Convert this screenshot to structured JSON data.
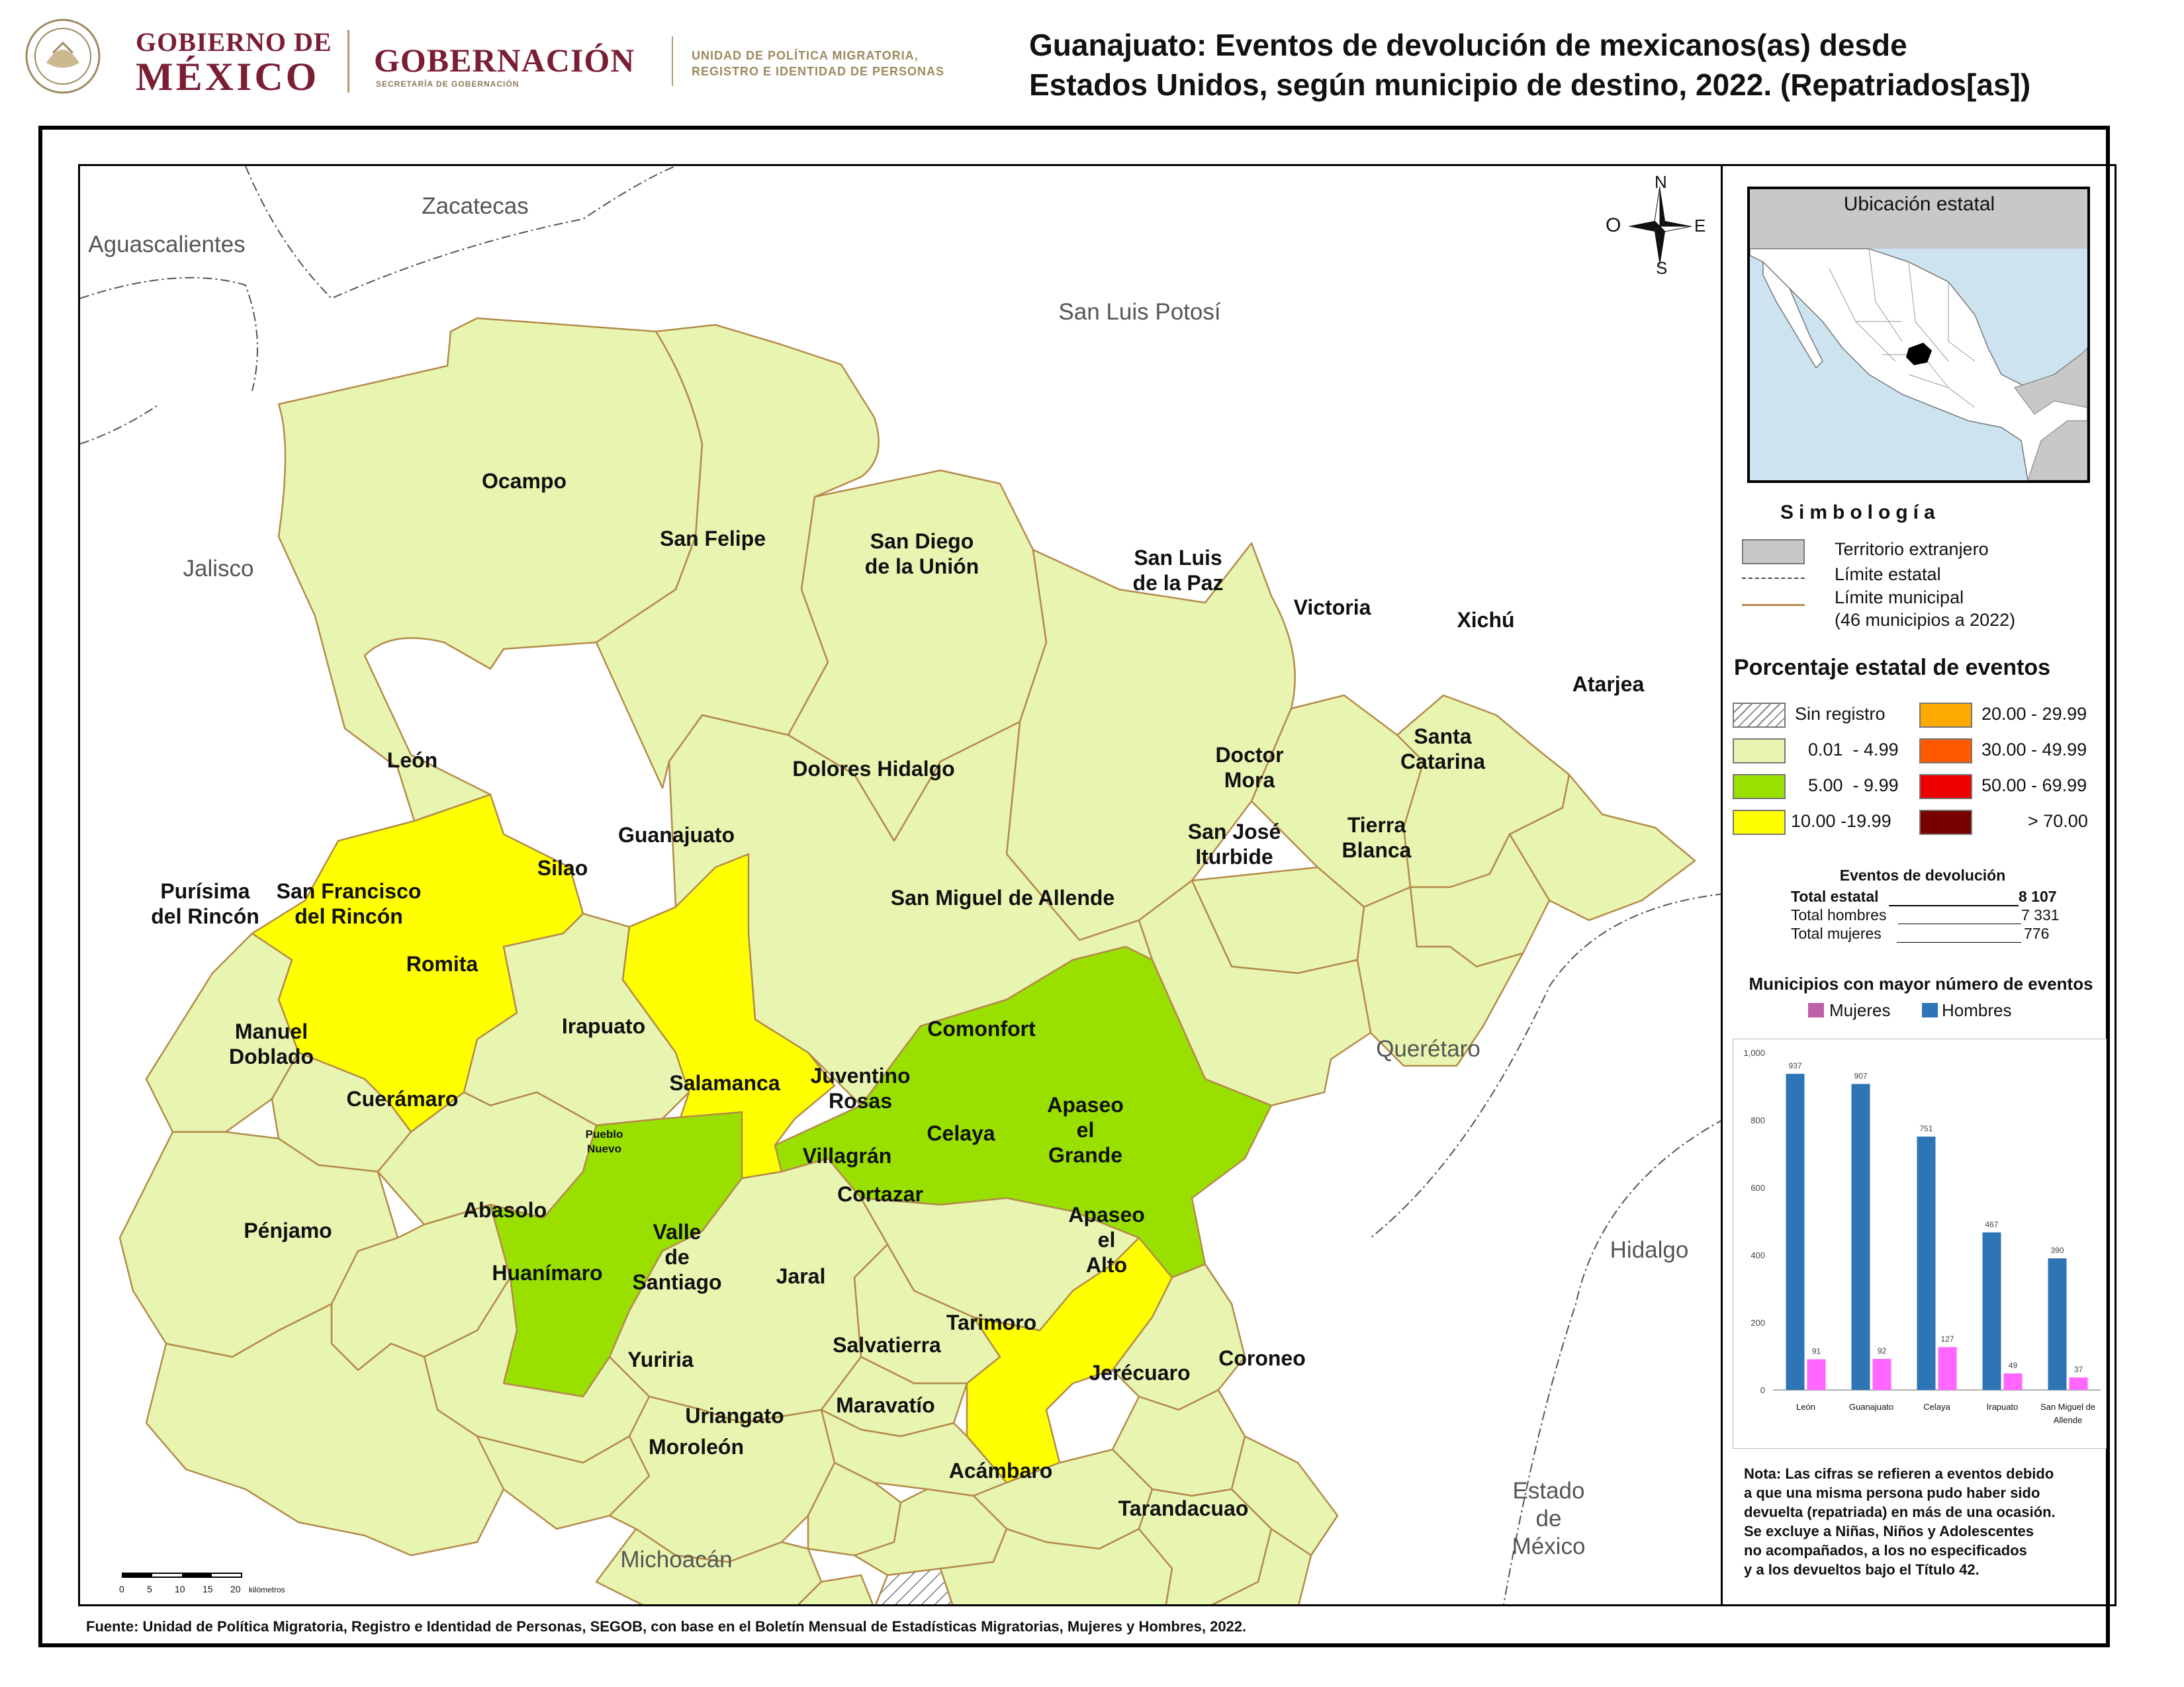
{
  "header": {
    "gobierno_line1": "GOBIERNO DE",
    "gobierno_line2": "MÉXICO",
    "gobernacion": "GOBERNACIÓN",
    "gobernacion_sub": "SECRETARÍA DE GOBERNACIÓN",
    "unidad_line1": "UNIDAD DE POLÍTICA MIGRATORIA,",
    "unidad_line2": "REGISTRO E IDENTIDAD DE PERSONAS",
    "title_line1": "Guanajuato: Eventos de devolución de mexicanos(as) desde",
    "title_line2": "Estados Unidos, según municipio de destino, 2022. (Repatriados[as])"
  },
  "map": {
    "states": {
      "zacatecas": "Zacatecas",
      "aguascalientes": "Aguascalientes",
      "san_luis_potosi": "San Luis Potosí",
      "jalisco": "Jalisco",
      "queretaro": "Querétaro",
      "hidalgo": "Hidalgo",
      "michoacan": "Michoacán",
      "estado_mexico_1": "Estado",
      "estado_mexico_2": "de",
      "estado_mexico_3": "México"
    },
    "compass": {
      "n": "N",
      "s": "S",
      "e": "E",
      "o": "O"
    },
    "scale": {
      "ticks": [
        "0",
        "5",
        "10",
        "15",
        "20"
      ],
      "unit": "kilómetros"
    },
    "municipalities": [
      {
        "name": "Ocampo",
        "class": "0.01 - 4.99"
      },
      {
        "name": "San Felipe",
        "class": "0.01 - 4.99"
      },
      {
        "name": "San Diego de la Unión",
        "class": "0.01 - 4.99"
      },
      {
        "name": "San Luis de la Paz",
        "class": "0.01 - 4.99"
      },
      {
        "name": "Victoria",
        "class": "0.01 - 4.99"
      },
      {
        "name": "Xichú",
        "class": "0.01 - 4.99"
      },
      {
        "name": "Atarjea",
        "class": "0.01 - 4.99"
      },
      {
        "name": "León",
        "class": "10.00 -19.99"
      },
      {
        "name": "Guanajuato",
        "class": "10.00 -19.99"
      },
      {
        "name": "Dolores Hidalgo",
        "class": "0.01 - 4.99"
      },
      {
        "name": "Doctor Mora",
        "class": "0.01 - 4.99"
      },
      {
        "name": "Santa Catarina",
        "class": "0.01 - 4.99"
      },
      {
        "name": "San José Iturbide",
        "class": "0.01 - 4.99"
      },
      {
        "name": "Tierra Blanca",
        "class": "0.01 - 4.99"
      },
      {
        "name": "Silao",
        "class": "0.01 - 4.99"
      },
      {
        "name": "Purísima del Rincón",
        "class": "0.01 - 4.99"
      },
      {
        "name": "San Francisco del Rincón",
        "class": "0.01 - 4.99"
      },
      {
        "name": "San Miguel de Allende",
        "class": "5.00 - 9.99"
      },
      {
        "name": "Romita",
        "class": "0.01 - 4.99"
      },
      {
        "name": "Irapuato",
        "class": "5.00 - 9.99"
      },
      {
        "name": "Comonfort",
        "class": "0.01 - 4.99"
      },
      {
        "name": "Manuel Doblado",
        "class": "0.01 - 4.99"
      },
      {
        "name": "Salamanca",
        "class": "0.01 - 4.99"
      },
      {
        "name": "Juventino Rosas",
        "class": "0.01 - 4.99"
      },
      {
        "name": "Cuerámaro",
        "class": "0.01 - 4.99"
      },
      {
        "name": "Celaya",
        "class": "10.00 -19.99"
      },
      {
        "name": "Apaseo el Grande",
        "class": "0.01 - 4.99"
      },
      {
        "name": "Pueblo Nuevo",
        "class": "5.00 - 9.99"
      },
      {
        "name": "Villagrán",
        "class": "0.01 - 4.99"
      },
      {
        "name": "Cortazar",
        "class": "0.01 - 4.99"
      },
      {
        "name": "Abasolo",
        "class": "0.01 - 4.99"
      },
      {
        "name": "Pénjamo",
        "class": "0.01 - 4.99"
      },
      {
        "name": "Valle de Santiago",
        "class": "0.01 - 4.99"
      },
      {
        "name": "Apaseo el Alto",
        "class": "0.01 - 4.99"
      },
      {
        "name": "Huanímaro",
        "class": "0.01 - 4.99"
      },
      {
        "name": "Jaral",
        "class": "0.01 - 4.99"
      },
      {
        "name": "Tarimoro",
        "class": "0.01 - 4.99"
      },
      {
        "name": "Salvatierra",
        "class": "0.01 - 4.99"
      },
      {
        "name": "Yuriria",
        "class": "0.01 - 4.99"
      },
      {
        "name": "Coroneo",
        "class": "0.01 - 4.99"
      },
      {
        "name": "Jerécuaro",
        "class": "0.01 - 4.99"
      },
      {
        "name": "Maravatío",
        "class": "Sin registro"
      },
      {
        "name": "Uriangato",
        "class": "0.01 - 4.99"
      },
      {
        "name": "Moroleón",
        "class": "0.01 - 4.99"
      },
      {
        "name": "Acámbaro",
        "class": "0.01 - 4.99"
      },
      {
        "name": "Tarandacuao",
        "class": "0.01 - 4.99"
      }
    ]
  },
  "inset": {
    "title": "Ubicación estatal"
  },
  "simbologia": {
    "title": "Simbología",
    "items": [
      "Territorio extranjero",
      "Límite estatal",
      "Límite municipal",
      "(46 municipios a 2022)"
    ]
  },
  "legend": {
    "title": "Porcentaje estatal de eventos",
    "classes": [
      {
        "label": "Sin registro",
        "color": "#ffffff"
      },
      {
        "label": "0.01  - 4.99",
        "color": "#e8f5b0"
      },
      {
        "label": "5.00  - 9.99",
        "color": "#99e000"
      },
      {
        "label": "10.00 -19.99",
        "color": "#ffff00"
      },
      {
        "label": "20.00 - 29.99",
        "color": "#ffaa00"
      },
      {
        "label": "30.00 - 49.99",
        "color": "#ff5a00"
      },
      {
        "label": "50.00 - 69.99",
        "color": "#ee0000"
      },
      {
        "label": "> 70.00",
        "color": "#7a0000"
      }
    ]
  },
  "eventos": {
    "title": "Eventos de devolución",
    "total_label": "Total estatal",
    "total_value": "8 107",
    "hombres_label": "Total hombres",
    "hombres_value": "7 331",
    "mujeres_label": "Total mujeres",
    "mujeres_value": "776"
  },
  "chart_data": {
    "type": "bar",
    "title": "Municipios con mayor número de eventos",
    "categories": [
      "León",
      "Guanajuato",
      "Celaya",
      "Irapuato",
      "San Miguel de Allende"
    ],
    "series": [
      {
        "name": "Hombres",
        "color": "#2e75b6",
        "values": [
          937,
          907,
          751,
          467,
          390
        ]
      },
      {
        "name": "Mujeres",
        "color": "#ff66ff",
        "values": [
          91,
          92,
          127,
          49,
          37
        ]
      }
    ],
    "yticks": [
      "0",
      "200",
      "400",
      "600",
      "800",
      "1,000"
    ],
    "ylim": [
      0,
      1000
    ],
    "legend_position": "top"
  },
  "note": {
    "lines": [
      "Nota: Las cifras se refieren a eventos debido",
      "a que una misma persona pudo haber sido",
      "devuelta (repatriada) en más de una ocasión.",
      "Se excluye a Niñas, Niños y Adolescentes",
      "no acompañados, a los no especificados",
      "y a los devueltos bajo el Título 42."
    ]
  },
  "source": "Fuente: Unidad de Política Migratoria, Registro e Identidad de Personas, SEGOB, con base en el Boletín Mensual de Estadísticas Migratorias, Mujeres y Hombres, 2022."
}
